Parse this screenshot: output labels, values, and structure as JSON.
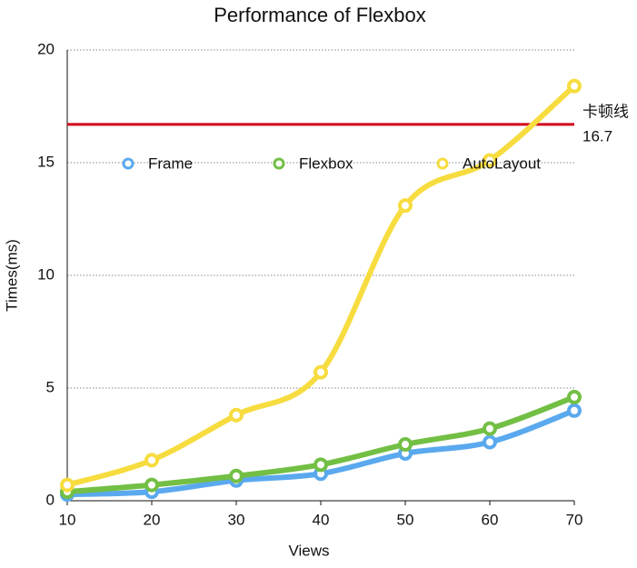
{
  "chart_data": {
    "type": "line",
    "title": "Performance of Flexbox",
    "x_label": "Views",
    "y_label": "Times(ms)",
    "x": [
      10,
      20,
      30,
      40,
      50,
      60,
      70
    ],
    "series": [
      {
        "name": "Frame",
        "color": "#5aa9ee",
        "values": [
          0.28,
          0.4,
          0.9,
          1.2,
          2.1,
          2.6,
          4.0
        ]
      },
      {
        "name": "Flexbox",
        "color": "#72bf44",
        "values": [
          0.4,
          0.7,
          1.1,
          1.6,
          2.5,
          3.2,
          4.6
        ]
      },
      {
        "name": "AutoLayout",
        "color": "#f7dc3f",
        "values": [
          0.7,
          1.8,
          3.8,
          5.7,
          13.1,
          15.1,
          18.4
        ]
      }
    ],
    "reference_line": {
      "value": 16.7,
      "label": "卡顿线",
      "color": "#d0021b"
    },
    "xlim": [
      10,
      70
    ],
    "xticks": [
      10,
      20,
      30,
      40,
      50,
      60,
      70
    ],
    "ylim": [
      0,
      20
    ],
    "yticks": [
      0,
      5,
      10,
      15,
      20
    ],
    "grid": true,
    "smooth": true
  }
}
